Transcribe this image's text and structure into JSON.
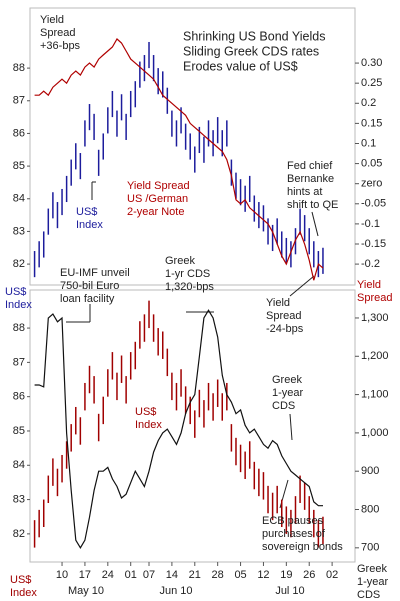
{
  "chart_data": [
    {
      "type": "hilo-line",
      "title": [
        "Shrinking US Bond Yields",
        "Sliding Greek CDS rates",
        "Erodes value of US$"
      ],
      "xlim": [
        -1,
        70
      ],
      "ylim": [
        81.36,
        89.84
      ],
      "yticks": [
        82,
        83,
        84,
        85,
        86,
        87,
        88
      ],
      "y2lim": [
        -0.252,
        0.437
      ],
      "y2ticks": [
        {
          "value": 0.3,
          "label": "0.30"
        },
        0.25,
        0.2,
        0.15,
        0.1,
        0.05,
        {
          "value": 0,
          "label": "zero"
        },
        -0.05,
        -0.1,
        -0.15,
        -0.2
      ],
      "x": [
        0,
        1,
        2,
        3,
        4,
        5,
        6,
        7,
        8,
        9,
        10,
        11,
        12,
        13,
        14,
        15,
        16,
        17,
        18,
        19,
        20,
        21,
        22,
        23,
        24,
        25,
        26,
        27,
        28,
        29,
        30,
        31,
        32,
        33,
        34,
        35,
        36,
        37,
        38,
        39,
        40,
        41,
        42,
        43,
        44,
        45,
        46,
        47,
        48,
        49,
        50,
        51,
        52,
        53,
        54,
        55,
        56,
        57,
        58,
        59,
        60,
        61,
        62,
        63
      ],
      "series": [
        {
          "color": "#1c1c9c",
          "high": [
            82.4,
            82.7,
            83.0,
            83.7,
            84.2,
            83.9,
            84.3,
            84.7,
            85.2,
            85.7,
            85.4,
            86.4,
            86.9,
            86.6,
            85.5,
            86.0,
            86.8,
            87.3,
            86.7,
            87.2,
            86.6,
            87.3,
            87.6,
            88.2,
            88.4,
            88.8,
            88.4,
            88.0,
            87.9,
            87.4,
            86.7,
            86.4,
            86.8,
            86.3,
            86.0,
            85.6,
            86.2,
            85.9,
            86.4,
            86.1,
            86.5,
            86.1,
            86.4,
            85.2,
            84.8,
            84.6,
            84.4,
            84.7,
            84.1,
            83.9,
            83.8,
            83.4,
            83.2,
            83.4,
            83.0,
            82.8,
            82.7,
            83.1,
            83.7,
            83.5,
            83.1,
            82.7,
            82.4,
            82.5
          ],
          "low": [
            81.6,
            81.9,
            82.2,
            82.9,
            83.4,
            83.1,
            83.5,
            83.9,
            84.4,
            84.9,
            84.6,
            85.6,
            86.1,
            85.8,
            84.7,
            85.2,
            86.0,
            86.5,
            85.9,
            86.4,
            85.8,
            86.5,
            86.8,
            87.4,
            87.6,
            88.0,
            87.6,
            87.2,
            87.1,
            86.6,
            85.9,
            85.6,
            86.0,
            85.5,
            85.2,
            84.8,
            85.4,
            85.1,
            85.6,
            85.3,
            85.7,
            85.3,
            85.6,
            84.4,
            84.0,
            83.8,
            83.6,
            83.9,
            83.3,
            83.1,
            83.0,
            82.6,
            82.4,
            82.6,
            82.2,
            82.0,
            81.9,
            82.3,
            82.9,
            82.7,
            82.3,
            81.9,
            81.6,
            81.7
          ]
        },
        {
          "color": "#b00000",
          "axis": "y2",
          "values": [
            0.22,
            0.22,
            0.23,
            0.22,
            0.24,
            0.25,
            0.26,
            0.25,
            0.27,
            0.28,
            0.27,
            0.29,
            0.3,
            0.29,
            0.31,
            0.32,
            0.33,
            0.34,
            0.36,
            0.35,
            0.33,
            0.31,
            0.3,
            0.29,
            0.28,
            0.27,
            0.26,
            0.24,
            0.22,
            0.21,
            0.2,
            0.19,
            0.18,
            0.17,
            0.15,
            0.14,
            0.13,
            0.12,
            0.11,
            0.1,
            0.09,
            0.08,
            0.06,
            0.02,
            -0.04,
            -0.05,
            -0.04,
            -0.06,
            -0.07,
            -0.08,
            -0.09,
            -0.1,
            -0.12,
            -0.15,
            -0.18,
            -0.2,
            -0.17,
            -0.14,
            -0.12,
            -0.15,
            -0.19,
            -0.24,
            -0.2,
            -0.21
          ]
        }
      ],
      "annotations": [
        {
          "lines": [
            "Yield",
            "Spread",
            "+36-bps"
          ],
          "color": "#222222"
        },
        {
          "lines": [
            "Yield Spread",
            "US /German",
            "2-year Note"
          ],
          "color": "#b00000"
        },
        {
          "lines": [
            "US$",
            "Index"
          ],
          "color": "#1c1c9c"
        },
        {
          "lines": [
            "Fed chief",
            "Bernanke",
            "hints at",
            "shift to QE"
          ],
          "color": "#222222"
        },
        {
          "lines": [
            "Yield",
            "Spread",
            "-24-bps"
          ],
          "color": "#222222"
        },
        {
          "lines": [
            "US$",
            "Index"
          ],
          "color": "#1c1c9c"
        },
        {
          "lines": [
            "Yield",
            "Spread"
          ],
          "color": "#b00000"
        }
      ]
    },
    {
      "type": "hilo-line",
      "xlim": [
        -1,
        70
      ],
      "xticks": [
        {
          "value": 6,
          "label": "10"
        },
        {
          "value": 11,
          "label": "17"
        },
        {
          "value": 16,
          "label": "24"
        },
        {
          "value": 21,
          "label": "01"
        },
        {
          "value": 25,
          "label": "07"
        },
        {
          "value": 30,
          "label": "14"
        },
        {
          "value": 35,
          "label": "21"
        },
        {
          "value": 40,
          "label": "28"
        },
        {
          "value": 45,
          "label": "05"
        },
        {
          "value": 50,
          "label": "12"
        },
        {
          "value": 55,
          "label": "19"
        },
        {
          "value": 60,
          "label": "26"
        },
        {
          "value": 65,
          "label": "02"
        }
      ],
      "months": [
        "May 10",
        "Jun 10",
        "Jul 10"
      ],
      "ylim": [
        81.18,
        89.11
      ],
      "yticks": [
        82,
        83,
        84,
        85,
        86,
        87,
        88
      ],
      "y2lim": [
        663,
        1373
      ],
      "y2ticks": [
        {
          "value": 1300,
          "label": "1,300"
        },
        {
          "value": 1200,
          "label": "1,200"
        },
        {
          "value": 1100,
          "label": "1,100"
        },
        {
          "value": 1000,
          "label": "1,000"
        },
        900,
        800,
        700
      ],
      "x": [
        0,
        1,
        2,
        3,
        4,
        5,
        6,
        7,
        8,
        9,
        10,
        11,
        12,
        13,
        14,
        15,
        16,
        17,
        18,
        19,
        20,
        21,
        22,
        23,
        24,
        25,
        26,
        27,
        28,
        29,
        30,
        31,
        32,
        33,
        34,
        35,
        36,
        37,
        38,
        39,
        40,
        41,
        42,
        43,
        44,
        45,
        46,
        47,
        48,
        49,
        50,
        51,
        52,
        53,
        54,
        55,
        56,
        57,
        58,
        59,
        60,
        61,
        62,
        63
      ],
      "series": [
        {
          "color": "#a00000",
          "high": [
            82.4,
            82.7,
            83.0,
            83.7,
            84.2,
            83.9,
            84.3,
            84.7,
            85.2,
            85.7,
            85.4,
            86.4,
            86.9,
            86.6,
            85.5,
            86.0,
            86.8,
            87.3,
            86.7,
            87.2,
            86.6,
            87.3,
            87.6,
            88.2,
            88.4,
            88.8,
            88.4,
            88.0,
            87.9,
            87.4,
            86.7,
            86.4,
            86.8,
            86.3,
            86.0,
            85.6,
            86.2,
            85.9,
            86.4,
            86.1,
            86.5,
            86.1,
            86.4,
            85.2,
            84.8,
            84.6,
            84.4,
            84.7,
            84.1,
            83.9,
            83.8,
            83.4,
            83.2,
            83.4,
            83.0,
            82.8,
            82.7,
            83.1,
            83.7,
            83.5,
            83.1,
            82.7,
            82.4,
            82.5
          ],
          "low": [
            81.6,
            81.9,
            82.2,
            82.9,
            83.4,
            83.1,
            83.5,
            83.9,
            84.4,
            84.9,
            84.6,
            85.6,
            86.1,
            85.8,
            84.7,
            85.2,
            86.0,
            86.5,
            85.9,
            86.4,
            85.8,
            86.5,
            86.8,
            87.4,
            87.6,
            88.0,
            87.6,
            87.2,
            87.1,
            86.6,
            85.9,
            85.6,
            86.0,
            85.5,
            85.2,
            84.8,
            85.4,
            85.1,
            85.6,
            85.3,
            85.7,
            85.3,
            85.6,
            84.4,
            84.0,
            83.8,
            83.6,
            83.9,
            83.3,
            83.1,
            83.0,
            82.6,
            82.4,
            82.6,
            82.2,
            82.0,
            81.9,
            82.3,
            82.9,
            82.7,
            82.3,
            81.9,
            81.6,
            81.7
          ]
        },
        {
          "color": "#111111",
          "axis": "y2",
          "values": [
            1125,
            1125,
            1120,
            1300,
            1310,
            1290,
            1300,
            1000,
            850,
            720,
            700,
            720,
            780,
            850,
            900,
            900,
            910,
            880,
            860,
            830,
            840,
            870,
            900,
            880,
            860,
            900,
            950,
            980,
            1000,
            1010,
            990,
            970,
            1000,
            1050,
            1080,
            1100,
            1200,
            1300,
            1320,
            1300,
            1250,
            1150,
            1100,
            1080,
            1050,
            1060,
            1020,
            1000,
            1010,
            990,
            970,
            960,
            980,
            970,
            940,
            920,
            900,
            890,
            880,
            870,
            860,
            820,
            810,
            810
          ]
        }
      ],
      "annotations": [
        {
          "lines": [
            "EU-IMF unveil",
            "750-bil Euro",
            "loan facility"
          ],
          "color": "#222222"
        },
        {
          "lines": [
            "Greek",
            "1-yr CDS",
            "1,320-bps"
          ],
          "color": "#222222"
        },
        {
          "lines": [
            "Greek",
            "1-year",
            "CDS"
          ],
          "color": "#222222"
        },
        {
          "lines": [
            "US$",
            "Index"
          ],
          "color": "#a00000"
        },
        {
          "lines": [
            "ECB pauses",
            "purchases of",
            "sovereign bonds"
          ],
          "color": "#222222"
        },
        {
          "lines": [
            "US$",
            "Index"
          ],
          "color": "#a00000"
        },
        {
          "lines": [
            "Greek",
            "1-year",
            "CDS"
          ],
          "color": "#222222"
        }
      ]
    }
  ]
}
